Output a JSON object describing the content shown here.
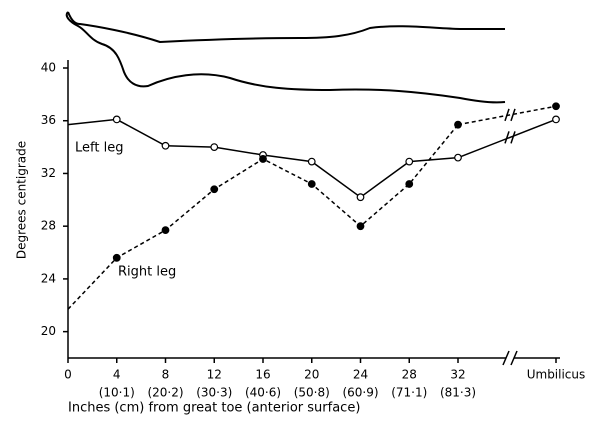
{
  "chart_data": {
    "type": "line",
    "ylabel": "Degrees centigrade",
    "xlabel": "Inches (cm) from great toe (anterior surface)",
    "x": [
      0,
      4,
      8,
      12,
      16,
      20,
      24,
      28,
      32
    ],
    "xlim": [
      0,
      32
    ],
    "xticks": [
      0,
      4,
      8,
      12,
      16,
      20,
      24,
      28,
      32
    ],
    "xtick_cm": [
      "(10·1)",
      "(20·2)",
      "(30·3)",
      "(40·6)",
      "(50·8)",
      "(60·9)",
      "(71·1)",
      "(81·3)"
    ],
    "end_category": "Umbilicus",
    "ylim": [
      18,
      40
    ],
    "yticks": [
      20,
      24,
      28,
      32,
      36,
      40
    ],
    "series": [
      {
        "name": "Left leg",
        "color": "#000000",
        "marker": "open",
        "dashed": false,
        "values": [
          35.7,
          36.1,
          34.1,
          34.0,
          33.4,
          32.9,
          30.2,
          32.9,
          33.2
        ],
        "end_value": 36.1
      },
      {
        "name": "Right leg",
        "color": "#000000",
        "marker": "filled",
        "dashed": true,
        "values": [
          21.7,
          25.6,
          27.7,
          30.8,
          33.1,
          31.2,
          28.0,
          31.2,
          35.7
        ],
        "end_value": 37.1
      }
    ]
  }
}
